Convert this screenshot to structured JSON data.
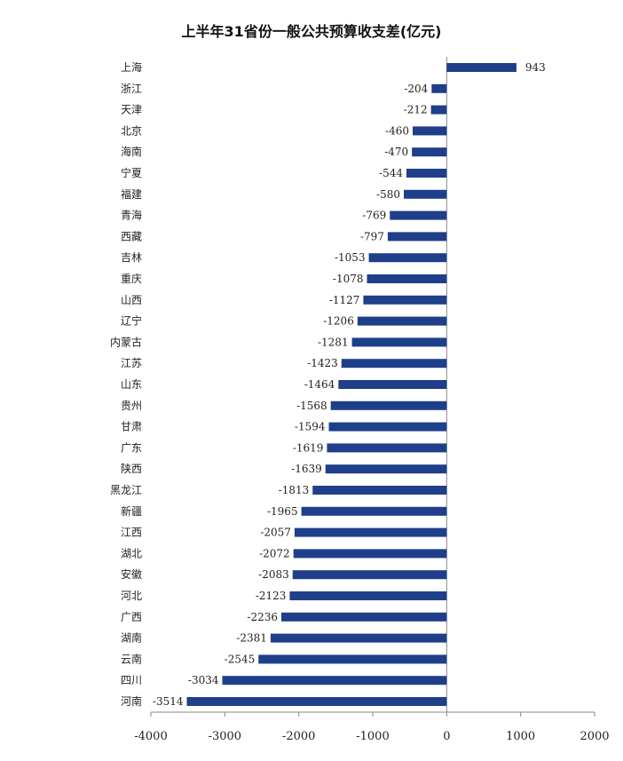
{
  "chart_data": {
    "type": "bar",
    "orientation": "horizontal",
    "title": "上半年31省份一般公共预算收支差(亿元)",
    "categories": [
      "上海",
      "浙江",
      "天津",
      "北京",
      "海南",
      "宁夏",
      "福建",
      "青海",
      "西藏",
      "吉林",
      "重庆",
      "山西",
      "辽宁",
      "内蒙古",
      "江苏",
      "山东",
      "贵州",
      "甘肃",
      "广东",
      "陕西",
      "黑龙江",
      "新疆",
      "江西",
      "湖北",
      "安徽",
      "河北",
      "广西",
      "湖南",
      "云南",
      "四川",
      "河南"
    ],
    "values": [
      943,
      -204,
      -212,
      -460,
      -470,
      -544,
      -580,
      -769,
      -797,
      -1053,
      -1078,
      -1127,
      -1206,
      -1281,
      -1423,
      -1464,
      -1568,
      -1594,
      -1619,
      -1639,
      -1813,
      -1965,
      -2057,
      -2072,
      -2083,
      -2123,
      -2236,
      -2381,
      -2545,
      -3034,
      -3514
    ],
    "value_labels": [
      "943",
      "-204",
      "-212",
      "-460",
      "-470",
      "-544",
      "-580",
      "-769",
      "-797",
      "-1053",
      "-1078",
      "-1127",
      "-1206",
      "-1281",
      "-1423",
      "-1464",
      "-1568",
      "-1594",
      "-1619",
      "-1639",
      "-1813",
      "-1965",
      "-2057",
      "-2072",
      "-2083",
      "-2123",
      "-2236",
      "-2381",
      "-2545",
      "-3034",
      "-3514"
    ],
    "xticks": [
      -4000,
      -3000,
      -2000,
      -1000,
      0,
      1000,
      2000
    ],
    "xtick_labels": [
      "-4000",
      "-3000",
      "-2000",
      "-1000",
      "0",
      "1000",
      "2000"
    ],
    "xlim": [
      -4000,
      2000
    ],
    "grid": false,
    "bar_color": "#1f3f8a"
  }
}
